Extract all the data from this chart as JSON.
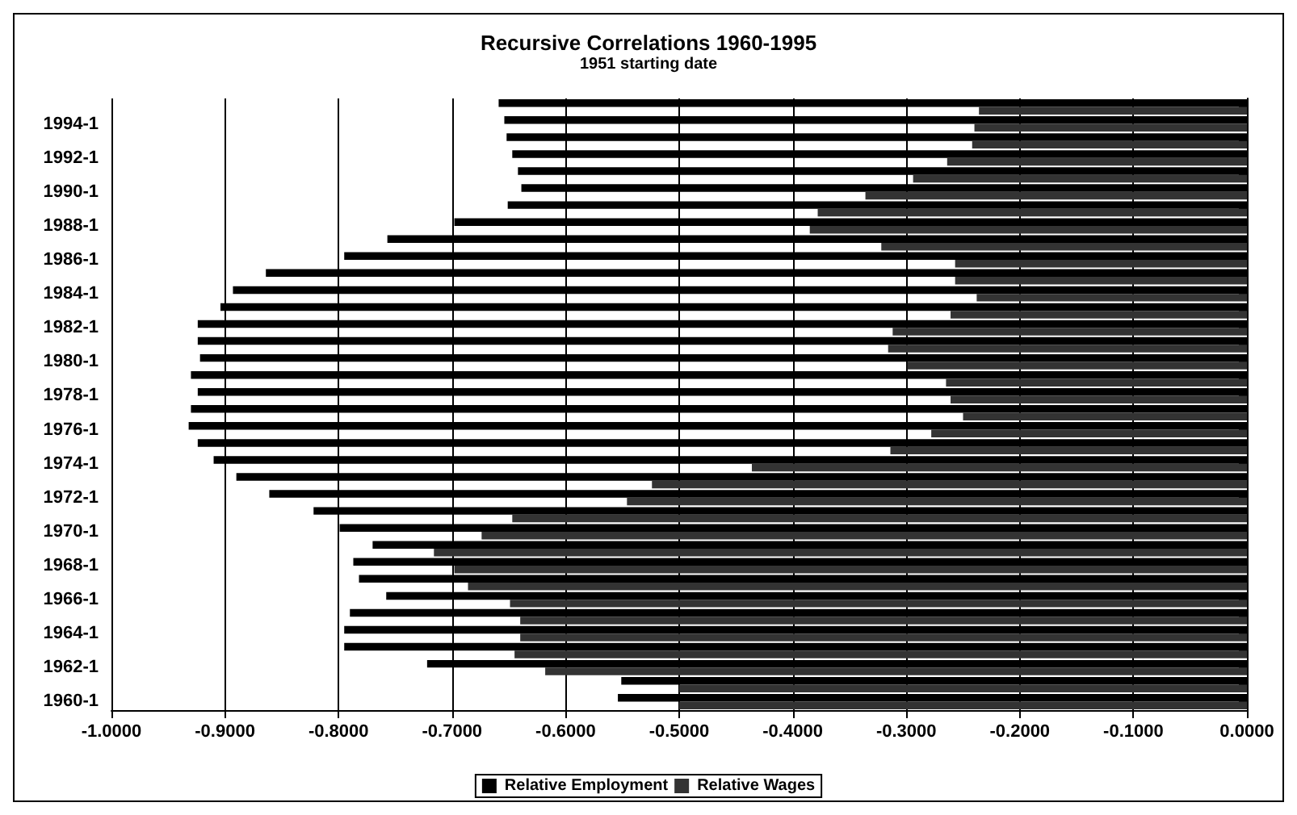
{
  "chart_data": {
    "type": "bar",
    "orientation": "horizontal",
    "title": "Recursive Correlations 1960-1995",
    "subtitle": "1951 starting date",
    "categories": [
      null,
      "1994-1",
      null,
      "1992-1",
      null,
      "1990-1",
      null,
      "1988-1",
      null,
      "1986-1",
      null,
      "1984-1",
      null,
      "1982-1",
      null,
      "1980-1",
      null,
      "1978-1",
      null,
      "1976-1",
      null,
      "1974-1",
      null,
      "1972-1",
      null,
      "1970-1",
      null,
      "1968-1",
      null,
      "1966-1",
      null,
      "1964-1",
      null,
      "1962-1",
      null,
      "1960-1"
    ],
    "series": [
      {
        "name": "Relative Employment",
        "color": "#000000",
        "values": [
          -0.659,
          -0.654,
          -0.652,
          -0.647,
          -0.642,
          -0.639,
          -0.651,
          -0.698,
          -0.757,
          -0.795,
          -0.864,
          -0.893,
          -0.904,
          -0.924,
          -0.924,
          -0.922,
          -0.93,
          -0.924,
          -0.93,
          -0.932,
          -0.924,
          -0.91,
          -0.89,
          -0.861,
          -0.822,
          -0.799,
          -0.77,
          -0.787,
          -0.782,
          -0.758,
          -0.79,
          -0.795,
          -0.795,
          -0.722,
          -0.551,
          -0.554
        ]
      },
      {
        "name": "Relative Wages",
        "color": "#333333",
        "values": [
          -0.236,
          -0.24,
          -0.242,
          -0.264,
          -0.294,
          -0.336,
          -0.378,
          -0.385,
          -0.322,
          -0.257,
          -0.257,
          -0.238,
          -0.261,
          -0.312,
          -0.316,
          -0.299,
          -0.265,
          -0.261,
          -0.25,
          -0.278,
          -0.314,
          -0.436,
          -0.524,
          -0.546,
          -0.647,
          -0.674,
          -0.716,
          -0.698,
          -0.686,
          -0.649,
          -0.64,
          -0.64,
          -0.645,
          -0.618,
          -0.5,
          -0.5
        ]
      }
    ],
    "xlim": [
      -1,
      0
    ],
    "xticks": [
      {
        "value": -1,
        "label": "-1.0000"
      },
      {
        "value": -0.9,
        "label": "-0.9000"
      },
      {
        "value": -0.8,
        "label": "-0.8000"
      },
      {
        "value": -0.7,
        "label": "-0.7000"
      },
      {
        "value": -0.6,
        "label": "-0.6000"
      },
      {
        "value": -0.5,
        "label": "-0.5000"
      },
      {
        "value": -0.4,
        "label": "-0.4000"
      },
      {
        "value": -0.3,
        "label": "-0.3000"
      },
      {
        "value": -0.2,
        "label": "-0.2000"
      },
      {
        "value": -0.1,
        "label": "-0.1000"
      },
      {
        "value": 0,
        "label": "0.0000"
      }
    ],
    "grid": "x",
    "legend": "bottom"
  }
}
